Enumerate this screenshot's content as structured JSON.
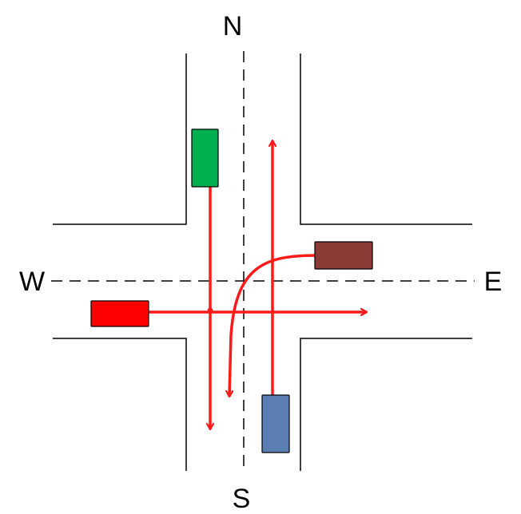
{
  "compass": {
    "north": "N",
    "south": "S",
    "west": "W",
    "east": "E"
  },
  "colors": {
    "road_edge": "#000000",
    "center_line": "#000000",
    "path": "#ff1a1a",
    "car_green": "#00b050",
    "car_red": "#ff0000",
    "car_brown": "#8b3a36",
    "car_blue": "#5b7fb3"
  },
  "vehicles": [
    {
      "id": "green",
      "approach": "north",
      "maneuver": "straight",
      "color": "#00b050"
    },
    {
      "id": "red",
      "approach": "west",
      "maneuver": "straight",
      "color": "#ff0000"
    },
    {
      "id": "brown",
      "approach": "east",
      "maneuver": "left-turn",
      "color": "#8b3a36"
    },
    {
      "id": "blue",
      "approach": "south",
      "maneuver": "straight",
      "color": "#5b7fb3"
    }
  ]
}
